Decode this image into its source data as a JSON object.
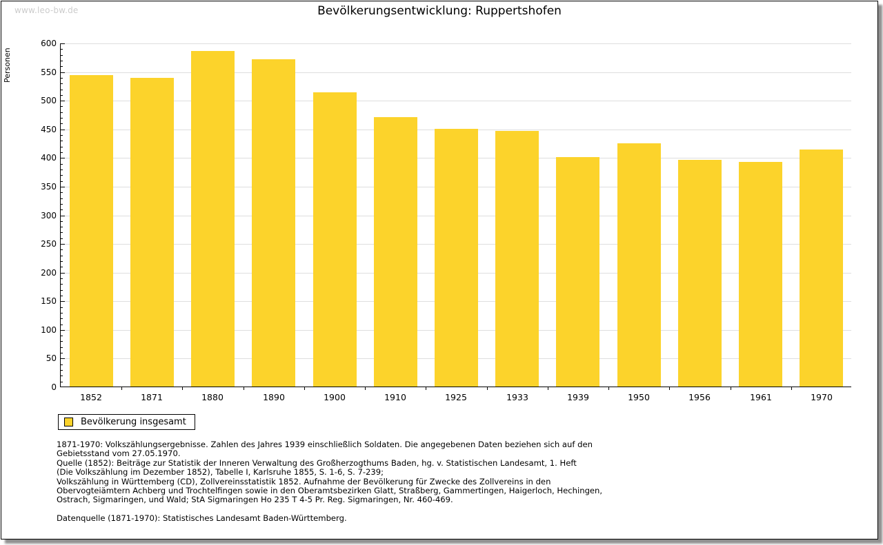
{
  "watermark": "www.leo-bw.de",
  "header": {
    "title": "Bevölkerungsentwicklung: Ruppertshofen"
  },
  "chart_data": {
    "type": "bar",
    "title": "Bevölkerungsentwicklung: Ruppertshofen",
    "xlabel": "",
    "ylabel": "Personen",
    "categories": [
      "1852",
      "1871",
      "1880",
      "1890",
      "1900",
      "1910",
      "1925",
      "1933",
      "1939",
      "1950",
      "1956",
      "1961",
      "1970"
    ],
    "values": [
      543,
      539,
      585,
      571,
      513,
      470,
      450,
      446,
      401,
      424,
      395,
      392,
      414
    ],
    "ylim": [
      0,
      600
    ],
    "ytick_major": 50,
    "ytick_minor": 10,
    "grid": "horizontal-major",
    "bar_color": "#FCD32B",
    "gridline_color": "#dedede",
    "legend": [
      {
        "label": "Bevölkerung insgesamt",
        "color": "#FCD32B"
      }
    ],
    "legend_position": "bottom-left"
  },
  "footnotes": {
    "notes_lines": [
      "1871-1970: Volkszählungsergebnisse. Zahlen des Jahres 1939 einschließlich Soldaten. Die angegebenen Daten beziehen sich auf den",
      "Gebietsstand vom 27.05.1970.",
      "Quelle (1852): Beiträge zur Statistik der Inneren Verwaltung des Großherzogthums Baden, hg. v. Statistischen Landesamt, 1. Heft",
      "(Die Volkszählung im Dezember 1852), Tabelle I, Karlsruhe 1855, S. 1-6, S. 7-239;",
      "Volkszählung in Württemberg (CD), Zollvereinsstatistik 1852. Aufnahme der Bevölkerung für Zwecke des Zollvereins in den",
      "Obervogteiämtern Achberg und Trochtelfingen sowie in den Oberamtsbezirken Glatt, Straßberg, Gammertingen, Haigerloch, Hechingen,",
      "Ostrach, Sigmaringen, und Wald; StA Sigmaringen Ho 235 T 4-5 Pr. Reg. Sigmaringen, Nr. 460-469."
    ],
    "datasource": "Datenquelle (1871-1970): Statistisches Landesamt Baden-Württemberg."
  }
}
